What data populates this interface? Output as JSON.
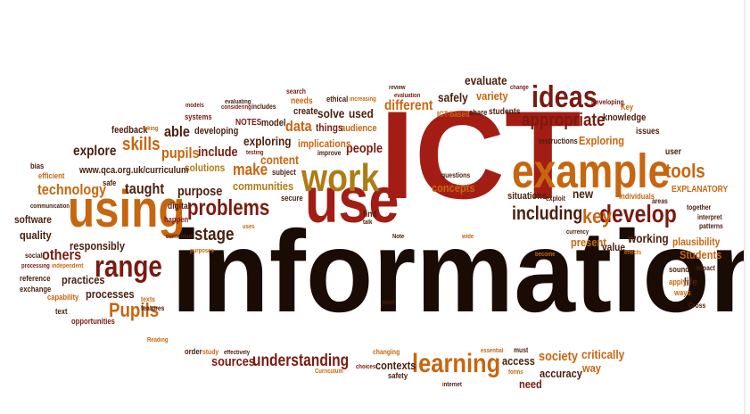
{
  "palette": {
    "black": "#1a0b05",
    "dark_red": "#7a1a10",
    "red": "#a31d14",
    "orange": "#c7660f",
    "brown": "#4b200f",
    "gold": "#b07b14"
  },
  "words": [
    {
      "text": "information",
      "color": "black"
    },
    {
      "text": "ICT",
      "color": "red"
    },
    {
      "text": "example",
      "color": "orange"
    },
    {
      "text": "use",
      "color": "red"
    },
    {
      "text": "using",
      "color": "orange"
    },
    {
      "text": "work",
      "color": "gold"
    },
    {
      "text": "range",
      "color": "dark_red"
    },
    {
      "text": "ideas",
      "color": "dark_red"
    },
    {
      "text": "learning",
      "color": "orange"
    },
    {
      "text": "problems",
      "color": "dark_red"
    },
    {
      "text": "develop",
      "color": "dark_red"
    },
    {
      "text": "key",
      "color": "orange"
    },
    {
      "text": "appropriate",
      "color": "dark_red"
    },
    {
      "text": "tools",
      "color": "orange"
    },
    {
      "text": "including",
      "color": "brown"
    },
    {
      "text": "Pupils",
      "color": "orange"
    },
    {
      "text": "understanding",
      "color": "dark_red"
    },
    {
      "text": "skills",
      "color": "orange"
    },
    {
      "text": "technology",
      "color": "orange"
    },
    {
      "text": "stage",
      "color": "brown"
    },
    {
      "text": "different",
      "color": "orange"
    },
    {
      "text": "taught",
      "color": "brown"
    },
    {
      "text": "pupils",
      "color": "orange"
    },
    {
      "text": "explore",
      "color": "brown"
    },
    {
      "text": "society",
      "color": "orange"
    },
    {
      "text": "able",
      "color": "brown"
    },
    {
      "text": "make",
      "color": "orange"
    },
    {
      "text": "content",
      "color": "orange"
    },
    {
      "text": "include",
      "color": "dark_red"
    },
    {
      "text": "others",
      "color": "dark_red"
    },
    {
      "text": "critically",
      "color": "orange"
    },
    {
      "text": "concepts",
      "color": "orange"
    },
    {
      "text": "sources",
      "color": "dark_red"
    },
    {
      "text": "data",
      "color": "orange"
    },
    {
      "text": "working",
      "color": "brown"
    },
    {
      "text": "Students",
      "color": "orange"
    },
    {
      "text": "accuracy",
      "color": "brown"
    },
    {
      "text": "used",
      "color": "brown"
    },
    {
      "text": "processes",
      "color": "brown"
    },
    {
      "text": "purpose",
      "color": "brown"
    },
    {
      "text": "exploring",
      "color": "brown"
    },
    {
      "text": "communities",
      "color": "gold"
    },
    {
      "text": "people",
      "color": "dark_red"
    },
    {
      "text": "solve",
      "color": "brown"
    },
    {
      "text": "safely",
      "color": "brown"
    },
    {
      "text": "evaluate",
      "color": "brown"
    },
    {
      "text": "variety",
      "color": "orange"
    },
    {
      "text": "access",
      "color": "brown"
    },
    {
      "text": "contexts",
      "color": "brown"
    },
    {
      "text": "need",
      "color": "dark_red"
    },
    {
      "text": "way",
      "color": "orange"
    },
    {
      "text": "new",
      "color": "brown"
    },
    {
      "text": "practices",
      "color": "brown"
    },
    {
      "text": "quality",
      "color": "brown"
    },
    {
      "text": "software",
      "color": "brown"
    },
    {
      "text": "responsibly",
      "color": "brown"
    },
    {
      "text": "solutions",
      "color": "gold"
    },
    {
      "text": "present",
      "color": "orange"
    },
    {
      "text": "value",
      "color": "brown"
    },
    {
      "text": "implications",
      "color": "orange"
    },
    {
      "text": "audience",
      "color": "orange"
    },
    {
      "text": "Exploring",
      "color": "orange"
    },
    {
      "text": "knowledge",
      "color": "brown"
    },
    {
      "text": "plausibility",
      "color": "orange"
    },
    {
      "text": "life",
      "color": "brown"
    },
    {
      "text": "feedback",
      "color": "brown"
    },
    {
      "text": "developing",
      "color": "brown"
    },
    {
      "text": "things",
      "color": "dark_red"
    },
    {
      "text": "model",
      "color": "brown"
    },
    {
      "text": "create",
      "color": "brown"
    },
    {
      "text": "needs",
      "color": "orange"
    },
    {
      "text": "situations",
      "color": "brown"
    },
    {
      "text": "EXPLANATORY",
      "color": "orange"
    },
    {
      "text": "www.qca.org.uk/curriculum",
      "color": "brown"
    },
    {
      "text": "secure",
      "color": "brown"
    },
    {
      "text": "subject",
      "color": "brown"
    },
    {
      "text": "find",
      "color": "brown"
    },
    {
      "text": "systems",
      "color": "dark_red"
    },
    {
      "text": "NOTES",
      "color": "dark_red"
    },
    {
      "text": "students",
      "color": "brown"
    },
    {
      "text": "share",
      "color": "brown"
    },
    {
      "text": "ICT-based",
      "color": "orange"
    },
    {
      "text": "user",
      "color": "brown"
    },
    {
      "text": "instructions",
      "color": "brown"
    },
    {
      "text": "issues",
      "color": "brown"
    },
    {
      "text": "digital",
      "color": "brown"
    },
    {
      "text": "happen",
      "color": "dark_red"
    },
    {
      "text": "safe",
      "color": "brown"
    },
    {
      "text": "bias",
      "color": "brown"
    },
    {
      "text": "efficient",
      "color": "orange"
    },
    {
      "text": "text",
      "color": "brown"
    },
    {
      "text": "opportunities",
      "color": "dark_red"
    },
    {
      "text": "exchange",
      "color": "brown"
    },
    {
      "text": "reference",
      "color": "brown"
    },
    {
      "text": "social",
      "color": "brown"
    },
    {
      "text": "capability",
      "color": "orange"
    },
    {
      "text": "sound",
      "color": "brown"
    },
    {
      "text": "apply",
      "color": "orange"
    },
    {
      "text": "ways",
      "color": "orange"
    },
    {
      "text": "Cross",
      "color": "brown"
    },
    {
      "text": "together",
      "color": "brown"
    },
    {
      "text": "interpret",
      "color": "brown"
    },
    {
      "text": "patterns",
      "color": "brown"
    },
    {
      "text": "areas",
      "color": "brown"
    },
    {
      "text": "individuals",
      "color": "orange"
    },
    {
      "text": "impact",
      "color": "brown"
    },
    {
      "text": "Key",
      "color": "orange"
    },
    {
      "text": "Developing",
      "color": "dark_red"
    },
    {
      "text": "change",
      "color": "dark_red"
    },
    {
      "text": "review",
      "color": "brown"
    },
    {
      "text": "evaluation",
      "color": "dark_red"
    },
    {
      "text": "ethical",
      "color": "brown"
    },
    {
      "text": "increasing",
      "color": "orange"
    },
    {
      "text": "search",
      "color": "dark_red"
    },
    {
      "text": "considering",
      "color": "dark_red"
    },
    {
      "text": "evaluating",
      "color": "brown"
    },
    {
      "text": "includes",
      "color": "brown"
    },
    {
      "text": "models",
      "color": "dark_red"
    },
    {
      "text": "taking",
      "color": "orange"
    },
    {
      "text": "testing",
      "color": "dark_red"
    },
    {
      "text": "improve",
      "color": "brown"
    },
    {
      "text": "questions",
      "color": "brown"
    },
    {
      "text": "wide",
      "color": "orange"
    },
    {
      "text": "exploit",
      "color": "brown"
    },
    {
      "text": "currency",
      "color": "brown"
    },
    {
      "text": "become",
      "color": "orange"
    },
    {
      "text": "effects",
      "color": "orange"
    },
    {
      "text": "curriculum",
      "color": "brown"
    },
    {
      "text": "purposes",
      "color": "orange"
    },
    {
      "text": "uses",
      "color": "orange"
    },
    {
      "text": "texts",
      "color": "orange"
    },
    {
      "text": "features",
      "color": "brown"
    },
    {
      "text": "most",
      "color": "brown"
    },
    {
      "text": "Reading",
      "color": "orange"
    },
    {
      "text": "order",
      "color": "brown"
    },
    {
      "text": "study",
      "color": "orange"
    },
    {
      "text": "effectively",
      "color": "brown"
    },
    {
      "text": "essential",
      "color": "orange"
    },
    {
      "text": "changing",
      "color": "orange"
    },
    {
      "text": "must",
      "color": "brown"
    },
    {
      "text": "Curriculum",
      "color": "orange"
    },
    {
      "text": "choices",
      "color": "dark_red"
    },
    {
      "text": "forms",
      "color": "orange"
    },
    {
      "text": "safety",
      "color": "brown"
    },
    {
      "text": "internet",
      "color": "brown"
    },
    {
      "text": "communication",
      "color": "brown"
    },
    {
      "text": "processing",
      "color": "dark_red"
    },
    {
      "text": "independent",
      "color": "orange"
    },
    {
      "text": "talk",
      "color": "brown"
    },
    {
      "text": "Note",
      "color": "brown"
    }
  ]
}
